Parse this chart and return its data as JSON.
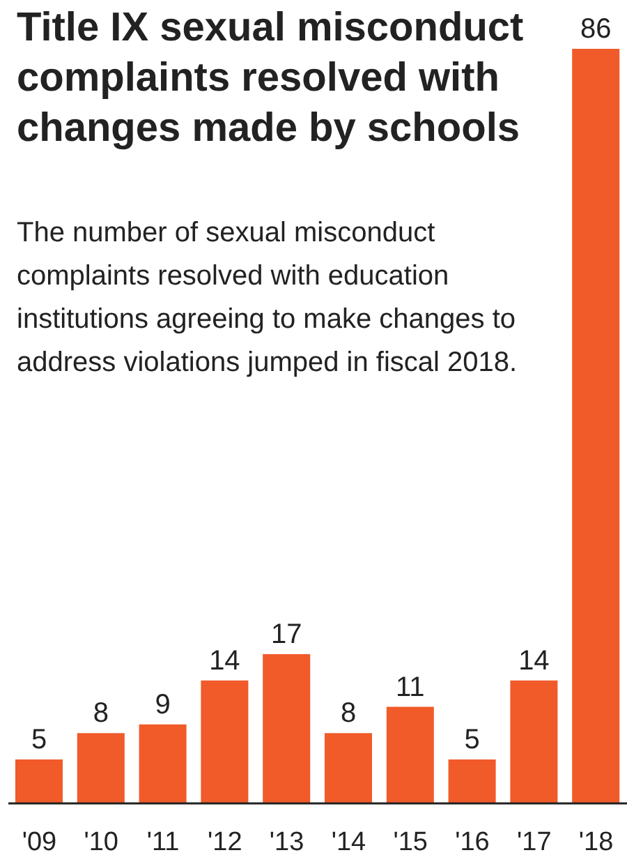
{
  "chart_data": {
    "type": "bar",
    "title": "Title IX sexual misconduct complaints resolved with changes made by schools",
    "subtitle": "The number of sexual misconduct complaints resolved with education institutions agreeing to make changes to address violations jumped in fiscal 2018.",
    "categories": [
      "'09",
      "'10",
      "'11",
      "'12",
      "'13",
      "'14",
      "'15",
      "'16",
      "'17",
      "'18"
    ],
    "values": [
      5,
      8,
      9,
      14,
      17,
      8,
      11,
      5,
      14,
      86
    ],
    "color": "#f15a29",
    "data_labels": true,
    "grid": false,
    "legend": false
  }
}
